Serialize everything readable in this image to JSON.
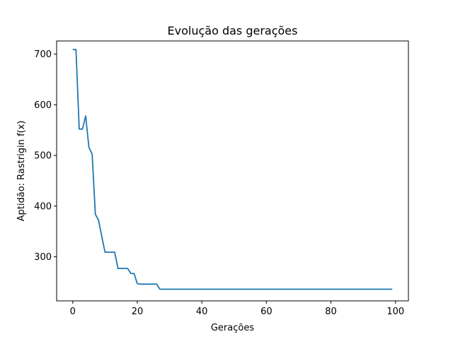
{
  "chart_data": {
    "type": "line",
    "title": "Evolução das gerações",
    "xlabel": "Gerações",
    "ylabel": "Aptidão: Rastrigin f(x)",
    "xlim": [
      -5,
      104
    ],
    "ylim": [
      213,
      726
    ],
    "xticks": [
      0,
      20,
      40,
      60,
      80,
      100
    ],
    "yticks": [
      300,
      400,
      500,
      600,
      700
    ],
    "grid": false,
    "legend": "none",
    "series": [
      {
        "color": "#1f77b4",
        "x": [
          0,
          1,
          2,
          3,
          4,
          5,
          6,
          7,
          8,
          9,
          10,
          11,
          12,
          13,
          14,
          15,
          16,
          17,
          18,
          19,
          20,
          21,
          22,
          23,
          24,
          25,
          26,
          27,
          28,
          29,
          30,
          31,
          32,
          33,
          34,
          35,
          36,
          37,
          38,
          39,
          40,
          41,
          42,
          43,
          44,
          45,
          46,
          47,
          48,
          49,
          50,
          51,
          52,
          53,
          54,
          55,
          56,
          57,
          58,
          59,
          60,
          61,
          62,
          63,
          64,
          65,
          66,
          67,
          68,
          69,
          70,
          71,
          72,
          73,
          74,
          75,
          76,
          77,
          78,
          79,
          80,
          81,
          82,
          83,
          84,
          85,
          86,
          87,
          88,
          89,
          90,
          91,
          92,
          93,
          94,
          95,
          96,
          97,
          98,
          99
        ],
        "y": [
          709,
          709,
          552,
          552,
          578,
          516,
          503,
          384,
          372,
          340,
          309,
          309,
          309,
          309,
          277,
          277,
          277,
          277,
          267,
          267,
          247,
          246,
          246,
          246,
          246,
          246,
          246,
          236,
          236,
          236,
          236,
          236,
          236,
          236,
          236,
          236,
          236,
          236,
          236,
          236,
          236,
          236,
          236,
          236,
          236,
          236,
          236,
          236,
          236,
          236,
          236,
          236,
          236,
          236,
          236,
          236,
          236,
          236,
          236,
          236,
          236,
          236,
          236,
          236,
          236,
          236,
          236,
          236,
          236,
          236,
          236,
          236,
          236,
          236,
          236,
          236,
          236,
          236,
          236,
          236,
          236,
          236,
          236,
          236,
          236,
          236,
          236,
          236,
          236,
          236,
          236,
          236,
          236,
          236,
          236,
          236,
          236,
          236,
          236,
          236
        ]
      }
    ]
  }
}
